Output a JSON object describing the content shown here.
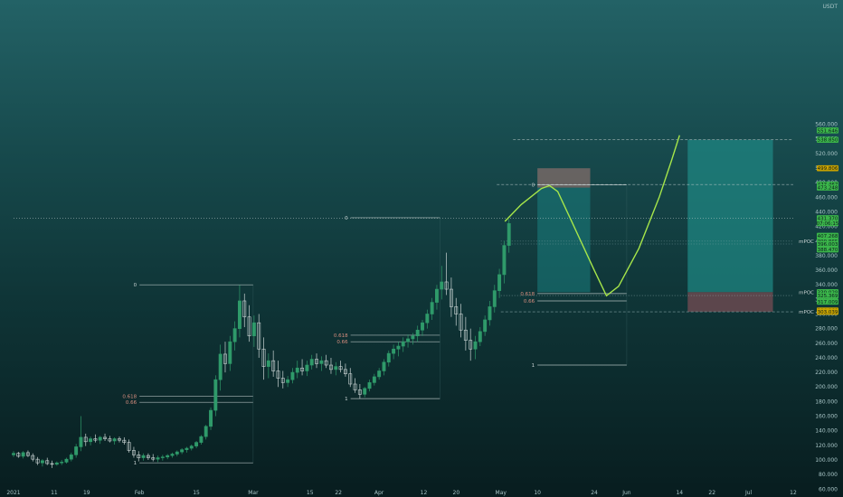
{
  "chart_data": {
    "type": "candlestick",
    "currency": "USDT",
    "ylim": [
      59.09,
      720.51
    ],
    "y_ticks": [
      "60.000",
      "80.000",
      "100.000",
      "120.000",
      "140.000",
      "160.000",
      "180.000",
      "200.000",
      "220.000",
      "240.000",
      "260.000",
      "280.000",
      "300.000",
      "320.000",
      "340.000",
      "360.000",
      "380.000",
      "400.000",
      "420.000",
      "440.000",
      "460.000",
      "480.000",
      "500.000",
      "520.000",
      "540.000",
      "560.000"
    ],
    "x_ticks": [
      "2021",
      "11",
      "19",
      "Feb",
      "15",
      "Mar",
      "15",
      "22",
      "Apr",
      "12",
      "20",
      "May",
      "10",
      "24",
      "Jun",
      "14",
      "22",
      "Jul",
      "12"
    ],
    "x_range": [
      "2021-01-01",
      "2021-07-12"
    ],
    "x_tick_dates": [
      "2021-01-01",
      "2021-01-11",
      "2021-01-19",
      "2021-02-01",
      "2021-02-15",
      "2021-03-01",
      "2021-03-15",
      "2021-03-22",
      "2021-04-01",
      "2021-04-12",
      "2021-04-20",
      "2021-05-01",
      "2021-05-10",
      "2021-05-24",
      "2021-06-01",
      "2021-06-14",
      "2021-06-22",
      "2021-07-01",
      "2021-07-12"
    ],
    "price_tags": [
      {
        "text": "551.646",
        "color": "#3bb54a"
      },
      {
        "text": "538.850",
        "color": "#3bb54a"
      },
      {
        "text": "499.806",
        "color": "#c8a200"
      },
      {
        "text": "477.467",
        "color": "#3bb54a"
      },
      {
        "text": "473.248",
        "color": "#3bb54a"
      },
      {
        "text": "431.370",
        "color": "#3bb54a"
      },
      {
        "text": "07:06:15",
        "color": "#3bb54a"
      },
      {
        "text": "407.268",
        "color": "#3bb54a"
      },
      {
        "text": "399.865",
        "color": "#3bb54a"
      },
      {
        "text": "396.003",
        "color": "#3bb54a"
      },
      {
        "text": "388.470",
        "color": "#3bb54a"
      },
      {
        "text": "330.029",
        "color": "#3bb54a"
      },
      {
        "text": "325.369",
        "color": "#3bb54a"
      },
      {
        "text": "317.009",
        "color": "#3bb54a"
      },
      {
        "text": "304.868",
        "color": "#c8a200"
      },
      {
        "text": "303.039",
        "color": "#c8a200"
      }
    ],
    "poc_labels": [
      "mPOC",
      "mPOC",
      "mPOC"
    ],
    "fib_labels": [
      "0",
      "0.618",
      "0.66",
      "0",
      "0.618",
      "0.66",
      "1",
      "0",
      "0.618",
      "0.66",
      "1"
    ],
    "candles": [
      {
        "o": 107,
        "h": 112,
        "l": 104,
        "c": 109
      },
      {
        "o": 109,
        "h": 111,
        "l": 103,
        "c": 105
      },
      {
        "o": 105,
        "h": 112,
        "l": 102,
        "c": 110
      },
      {
        "o": 110,
        "h": 113,
        "l": 104,
        "c": 106
      },
      {
        "o": 106,
        "h": 109,
        "l": 98,
        "c": 101
      },
      {
        "o": 101,
        "h": 104,
        "l": 93,
        "c": 96
      },
      {
        "o": 96,
        "h": 101,
        "l": 91,
        "c": 99
      },
      {
        "o": 99,
        "h": 103,
        "l": 93,
        "c": 95
      },
      {
        "o": 95,
        "h": 99,
        "l": 89,
        "c": 94
      },
      {
        "o": 94,
        "h": 98,
        "l": 92,
        "c": 96
      },
      {
        "o": 96,
        "h": 100,
        "l": 93,
        "c": 97
      },
      {
        "o": 97,
        "h": 103,
        "l": 95,
        "c": 101
      },
      {
        "o": 101,
        "h": 110,
        "l": 98,
        "c": 107
      },
      {
        "o": 107,
        "h": 122,
        "l": 103,
        "c": 118
      },
      {
        "o": 118,
        "h": 160,
        "l": 112,
        "c": 131
      },
      {
        "o": 131,
        "h": 136,
        "l": 119,
        "c": 125
      },
      {
        "o": 125,
        "h": 132,
        "l": 120,
        "c": 129
      },
      {
        "o": 129,
        "h": 135,
        "l": 124,
        "c": 127
      },
      {
        "o": 127,
        "h": 133,
        "l": 122,
        "c": 131
      },
      {
        "o": 131,
        "h": 136,
        "l": 126,
        "c": 129
      },
      {
        "o": 129,
        "h": 133,
        "l": 124,
        "c": 126
      },
      {
        "o": 126,
        "h": 131,
        "l": 121,
        "c": 129
      },
      {
        "o": 129,
        "h": 132,
        "l": 124,
        "c": 127
      },
      {
        "o": 127,
        "h": 131,
        "l": 121,
        "c": 124
      },
      {
        "o": 124,
        "h": 128,
        "l": 110,
        "c": 113
      },
      {
        "o": 113,
        "h": 118,
        "l": 103,
        "c": 107
      },
      {
        "o": 107,
        "h": 112,
        "l": 98,
        "c": 103
      },
      {
        "o": 103,
        "h": 109,
        "l": 99,
        "c": 106
      },
      {
        "o": 106,
        "h": 109,
        "l": 100,
        "c": 103
      },
      {
        "o": 103,
        "h": 108,
        "l": 98,
        "c": 101
      },
      {
        "o": 101,
        "h": 106,
        "l": 97,
        "c": 103
      },
      {
        "o": 103,
        "h": 107,
        "l": 99,
        "c": 104
      },
      {
        "o": 104,
        "h": 108,
        "l": 101,
        "c": 106
      },
      {
        "o": 106,
        "h": 110,
        "l": 103,
        "c": 108
      },
      {
        "o": 108,
        "h": 113,
        "l": 105,
        "c": 111
      },
      {
        "o": 111,
        "h": 116,
        "l": 108,
        "c": 114
      },
      {
        "o": 114,
        "h": 118,
        "l": 110,
        "c": 116
      },
      {
        "o": 116,
        "h": 121,
        "l": 113,
        "c": 119
      },
      {
        "o": 119,
        "h": 126,
        "l": 116,
        "c": 124
      },
      {
        "o": 124,
        "h": 134,
        "l": 121,
        "c": 132
      },
      {
        "o": 132,
        "h": 148,
        "l": 128,
        "c": 146
      },
      {
        "o": 146,
        "h": 172,
        "l": 141,
        "c": 168
      },
      {
        "o": 168,
        "h": 216,
        "l": 160,
        "c": 210
      },
      {
        "o": 210,
        "h": 258,
        "l": 195,
        "c": 245
      },
      {
        "o": 245,
        "h": 262,
        "l": 220,
        "c": 232
      },
      {
        "o": 232,
        "h": 270,
        "l": 222,
        "c": 262
      },
      {
        "o": 262,
        "h": 290,
        "l": 250,
        "c": 280
      },
      {
        "o": 280,
        "h": 340,
        "l": 268,
        "c": 318
      },
      {
        "o": 318,
        "h": 328,
        "l": 282,
        "c": 296
      },
      {
        "o": 296,
        "h": 312,
        "l": 262,
        "c": 270
      },
      {
        "o": 270,
        "h": 298,
        "l": 255,
        "c": 288
      },
      {
        "o": 288,
        "h": 300,
        "l": 240,
        "c": 252
      },
      {
        "o": 252,
        "h": 268,
        "l": 210,
        "c": 228
      },
      {
        "o": 228,
        "h": 246,
        "l": 212,
        "c": 236
      },
      {
        "o": 236,
        "h": 250,
        "l": 214,
        "c": 222
      },
      {
        "o": 222,
        "h": 236,
        "l": 200,
        "c": 212
      },
      {
        "o": 212,
        "h": 222,
        "l": 198,
        "c": 206
      },
      {
        "o": 206,
        "h": 215,
        "l": 200,
        "c": 210
      },
      {
        "o": 210,
        "h": 226,
        "l": 205,
        "c": 220
      },
      {
        "o": 220,
        "h": 236,
        "l": 212,
        "c": 226
      },
      {
        "o": 226,
        "h": 238,
        "l": 216,
        "c": 222
      },
      {
        "o": 222,
        "h": 236,
        "l": 215,
        "c": 230
      },
      {
        "o": 230,
        "h": 244,
        "l": 224,
        "c": 238
      },
      {
        "o": 238,
        "h": 246,
        "l": 226,
        "c": 232
      },
      {
        "o": 232,
        "h": 242,
        "l": 222,
        "c": 236
      },
      {
        "o": 236,
        "h": 244,
        "l": 226,
        "c": 230
      },
      {
        "o": 230,
        "h": 240,
        "l": 218,
        "c": 224
      },
      {
        "o": 224,
        "h": 234,
        "l": 216,
        "c": 228
      },
      {
        "o": 228,
        "h": 236,
        "l": 220,
        "c": 224
      },
      {
        "o": 224,
        "h": 232,
        "l": 214,
        "c": 218
      },
      {
        "o": 218,
        "h": 226,
        "l": 200,
        "c": 204
      },
      {
        "o": 204,
        "h": 212,
        "l": 192,
        "c": 196
      },
      {
        "o": 196,
        "h": 204,
        "l": 184,
        "c": 190
      },
      {
        "o": 190,
        "h": 200,
        "l": 186,
        "c": 198
      },
      {
        "o": 198,
        "h": 210,
        "l": 194,
        "c": 206
      },
      {
        "o": 206,
        "h": 218,
        "l": 202,
        "c": 214
      },
      {
        "o": 214,
        "h": 226,
        "l": 210,
        "c": 222
      },
      {
        "o": 222,
        "h": 238,
        "l": 216,
        "c": 234
      },
      {
        "o": 234,
        "h": 250,
        "l": 228,
        "c": 246
      },
      {
        "o": 246,
        "h": 258,
        "l": 238,
        "c": 252
      },
      {
        "o": 252,
        "h": 262,
        "l": 242,
        "c": 256
      },
      {
        "o": 256,
        "h": 268,
        "l": 248,
        "c": 262
      },
      {
        "o": 262,
        "h": 272,
        "l": 254,
        "c": 266
      },
      {
        "o": 266,
        "h": 274,
        "l": 258,
        "c": 270
      },
      {
        "o": 270,
        "h": 284,
        "l": 262,
        "c": 278
      },
      {
        "o": 278,
        "h": 292,
        "l": 270,
        "c": 288
      },
      {
        "o": 288,
        "h": 306,
        "l": 280,
        "c": 300
      },
      {
        "o": 300,
        "h": 322,
        "l": 292,
        "c": 316
      },
      {
        "o": 316,
        "h": 340,
        "l": 306,
        "c": 334
      },
      {
        "o": 334,
        "h": 366,
        "l": 320,
        "c": 344
      },
      {
        "o": 344,
        "h": 384,
        "l": 326,
        "c": 334
      },
      {
        "o": 334,
        "h": 350,
        "l": 296,
        "c": 310
      },
      {
        "o": 310,
        "h": 322,
        "l": 284,
        "c": 300
      },
      {
        "o": 300,
        "h": 314,
        "l": 268,
        "c": 278
      },
      {
        "o": 278,
        "h": 296,
        "l": 250,
        "c": 264
      },
      {
        "o": 264,
        "h": 280,
        "l": 236,
        "c": 252
      },
      {
        "o": 252,
        "h": 270,
        "l": 238,
        "c": 262
      },
      {
        "o": 262,
        "h": 282,
        "l": 256,
        "c": 276
      },
      {
        "o": 276,
        "h": 298,
        "l": 270,
        "c": 292
      },
      {
        "o": 292,
        "h": 318,
        "l": 284,
        "c": 310
      },
      {
        "o": 310,
        "h": 340,
        "l": 302,
        "c": 332
      },
      {
        "o": 332,
        "h": 362,
        "l": 322,
        "c": 354
      },
      {
        "o": 354,
        "h": 400,
        "l": 342,
        "c": 394
      },
      {
        "o": 394,
        "h": 430,
        "l": 384,
        "c": 424
      }
    ],
    "projection_path": [
      [
        "2021-05-02",
        427
      ],
      [
        "2021-05-06",
        450
      ],
      [
        "2021-05-11",
        472
      ],
      [
        "2021-05-13",
        476
      ],
      [
        "2021-05-15",
        468
      ],
      [
        "2021-05-19",
        420
      ],
      [
        "2021-05-24",
        360
      ],
      [
        "2021-05-27",
        325
      ],
      [
        "2021-05-30",
        338
      ],
      [
        "2021-06-04",
        390
      ],
      [
        "2021-06-09",
        460
      ],
      [
        "2021-06-12",
        510
      ],
      [
        "2021-06-14",
        545
      ]
    ],
    "zones": [
      {
        "kind": "target",
        "x": [
          "2021-05-10",
          "2021-05-23"
        ],
        "y": [
          473.2,
          499.8
        ],
        "color": "#8a6f6c"
      },
      {
        "kind": "projection",
        "x": [
          "2021-05-10",
          "2021-05-23"
        ],
        "y": [
          330,
          473.2
        ],
        "color": "#1a7f80"
      },
      {
        "kind": "long-profit",
        "x": [
          "2021-06-16",
          "2021-07-07"
        ],
        "y": [
          330,
          538.9
        ],
        "color": "#1f8a86"
      },
      {
        "kind": "long-loss",
        "x": [
          "2021-06-16",
          "2021-07-07"
        ],
        "y": [
          303,
          330
        ],
        "color": "#7d4f55"
      }
    ],
    "levels": [
      {
        "y": 538.85,
        "x": [
          "2021-05-04",
          "2021-07-12"
        ],
        "style": "dashed",
        "color": "#b9c7c7"
      },
      {
        "y": 477.47,
        "x": [
          "2021-04-30",
          "2021-07-12"
        ],
        "style": "dashed",
        "color": "#b9c7c7"
      },
      {
        "y": 431.37,
        "x": [
          "2021-01-01",
          "2021-07-12"
        ],
        "style": "dotted",
        "color": "#b9c7c7"
      },
      {
        "y": 399.86,
        "x": [
          "2021-05-01",
          "2021-07-12"
        ],
        "style": "dotted",
        "color": "#8fb1b3"
      },
      {
        "y": 396.0,
        "x": [
          "2021-05-01",
          "2021-07-12"
        ],
        "style": "dotted",
        "color": "#8fb1b3"
      },
      {
        "y": 325.37,
        "x": [
          "2021-05-01",
          "2021-07-12"
        ],
        "style": "dotted",
        "color": "#8fb1b3"
      },
      {
        "y": 303.04,
        "x": [
          "2021-05-01",
          "2021-07-12"
        ],
        "style": "dashed",
        "color": "#8fb1b3"
      }
    ],
    "fibs": [
      {
        "x": [
          "2021-02-01",
          "2021-03-01"
        ],
        "lines": [
          {
            "label": "0",
            "y": 340
          },
          {
            "label": "0.618",
            "y": 187.5
          },
          {
            "label": "0.66",
            "y": 179
          },
          {
            "label": "1",
            "y": 96
          }
        ],
        "label_color": "#d98e7f"
      },
      {
        "x": [
          "2021-03-25",
          "2021-04-16"
        ],
        "lines": [
          {
            "label": "0",
            "y": 432
          },
          {
            "label": "0.618",
            "y": 271
          },
          {
            "label": "0.66",
            "y": 262
          },
          {
            "label": "1",
            "y": 184
          }
        ],
        "label_color": "#d98e7f"
      },
      {
        "x": [
          "2021-05-10",
          "2021-06-01"
        ],
        "lines": [
          {
            "label": "0",
            "y": 477
          },
          {
            "label": "0.618",
            "y": 328
          },
          {
            "label": "0.66",
            "y": 318
          },
          {
            "label": "1",
            "y": 230
          }
        ],
        "label_color": "#d98e7f"
      }
    ]
  }
}
